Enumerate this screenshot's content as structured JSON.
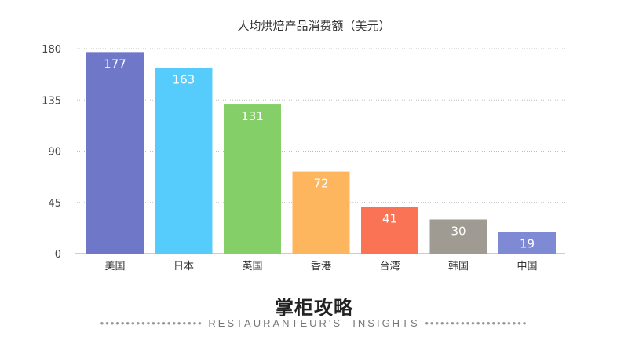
{
  "chart_data": {
    "type": "bar",
    "title": "人均烘焙产品消费额（美元）",
    "categories": [
      "美国",
      "日本",
      "英国",
      "香港",
      "台湾",
      "韩国",
      "中国"
    ],
    "values": [
      177,
      163,
      131,
      72,
      41,
      30,
      19
    ],
    "colors": [
      "#6f77c9",
      "#55ccfc",
      "#85cf69",
      "#fdb55e",
      "#fb7355",
      "#9f9a92",
      "#7e8ad4"
    ],
    "ylim": [
      0,
      180
    ],
    "yticks": [
      0,
      45,
      90,
      135,
      180
    ],
    "grid": true,
    "xlabel": "",
    "ylabel": ""
  },
  "footer": {
    "brand": "掌柜攻略",
    "tagline": "RESTAURANTEUR'S  INSIGHTS",
    "dots": "••••••••••••••••••••"
  }
}
